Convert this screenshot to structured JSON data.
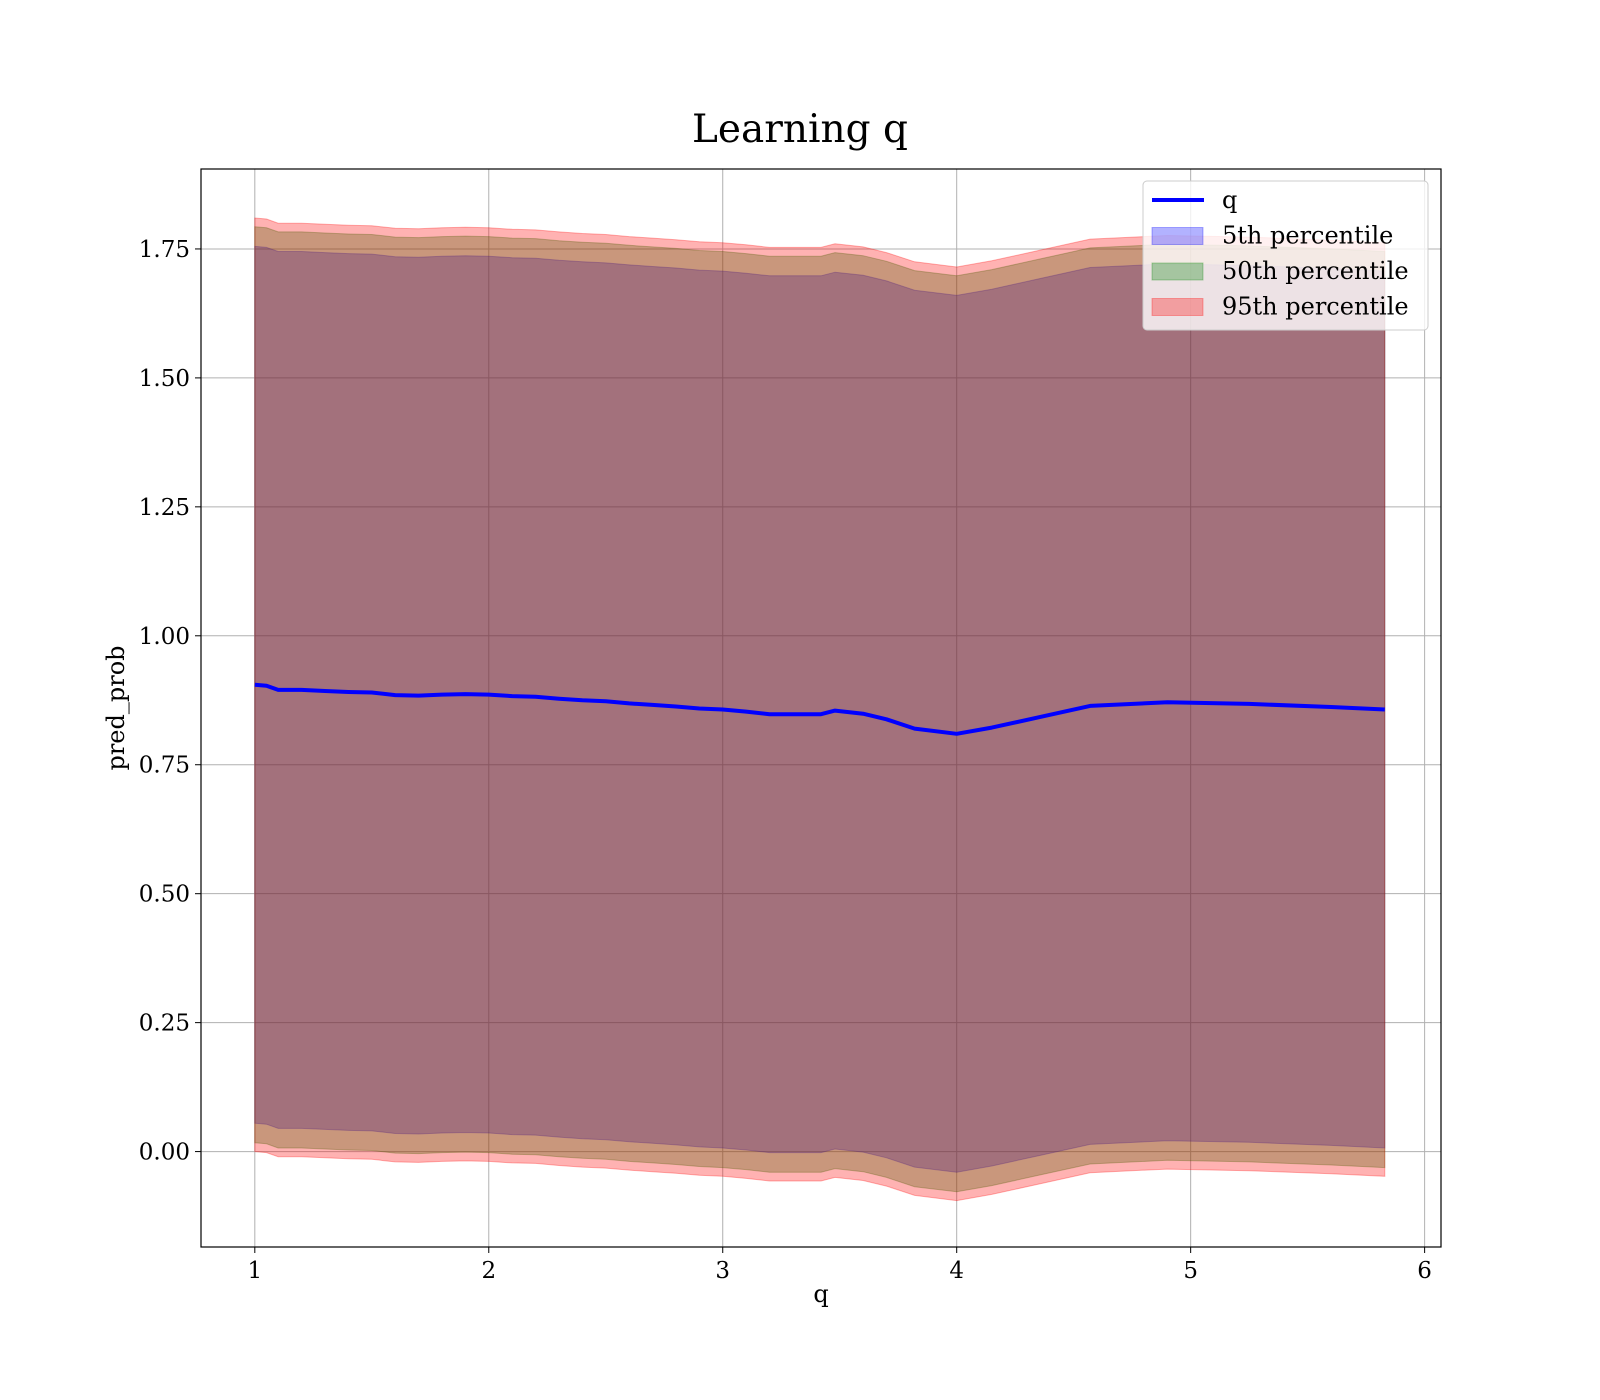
{
  "chart_data": {
    "type": "area",
    "title": "Learning q",
    "xlabel": "q",
    "ylabel": "pred_prob",
    "xlim": [
      0.77,
      6.07
    ],
    "ylim": [
      -0.185,
      1.905
    ],
    "x_ticks": [
      1,
      2,
      3,
      4,
      5,
      6
    ],
    "y_ticks": [
      0.0,
      0.25,
      0.5,
      0.75,
      1.0,
      1.25,
      1.5,
      1.75
    ],
    "y_tick_labels": [
      "0.00",
      "0.25",
      "0.50",
      "0.75",
      "1.00",
      "1.25",
      "1.50",
      "1.75"
    ],
    "grid": true,
    "legend_position": "top-right",
    "x": [
      1.0,
      1.05,
      1.1,
      1.2,
      1.3,
      1.4,
      1.5,
      1.6,
      1.7,
      1.8,
      1.9,
      2.0,
      2.1,
      2.2,
      2.3,
      2.4,
      2.5,
      2.6,
      2.7,
      2.8,
      2.9,
      3.0,
      3.1,
      3.2,
      3.3,
      3.42,
      3.48,
      3.6,
      3.7,
      3.82,
      4.0,
      4.15,
      4.35,
      4.57,
      4.9,
      5.25,
      5.6,
      5.83
    ],
    "series": [
      {
        "name": "q",
        "kind": "line",
        "color": "#0000ff",
        "values": [
          0.905,
          0.903,
          0.895,
          0.895,
          0.893,
          0.891,
          0.89,
          0.885,
          0.884,
          0.886,
          0.887,
          0.886,
          0.883,
          0.882,
          0.878,
          0.875,
          0.873,
          0.869,
          0.866,
          0.863,
          0.859,
          0.857,
          0.853,
          0.848,
          0.848,
          0.848,
          0.855,
          0.849,
          0.838,
          0.82,
          0.81,
          0.822,
          0.842,
          0.864,
          0.871,
          0.868,
          0.862,
          0.857
        ]
      },
      {
        "name": "5th percentile",
        "kind": "band",
        "color": "#0000ff",
        "lower": [
          0.055,
          0.053,
          0.045,
          0.045,
          0.043,
          0.041,
          0.04,
          0.035,
          0.034,
          0.036,
          0.037,
          0.036,
          0.033,
          0.032,
          0.028,
          0.025,
          0.023,
          0.019,
          0.016,
          0.013,
          0.009,
          0.007,
          0.003,
          -0.002,
          -0.002,
          -0.002,
          0.005,
          -0.001,
          -0.012,
          -0.03,
          -0.04,
          -0.028,
          -0.008,
          0.014,
          0.021,
          0.018,
          0.012,
          0.007
        ],
        "upper": [
          1.755,
          1.753,
          1.745,
          1.745,
          1.743,
          1.741,
          1.74,
          1.735,
          1.734,
          1.736,
          1.737,
          1.736,
          1.733,
          1.732,
          1.728,
          1.725,
          1.723,
          1.719,
          1.716,
          1.713,
          1.709,
          1.707,
          1.703,
          1.698,
          1.698,
          1.698,
          1.705,
          1.699,
          1.688,
          1.67,
          1.66,
          1.672,
          1.692,
          1.714,
          1.721,
          1.718,
          1.712,
          1.707
        ]
      },
      {
        "name": "50th percentile",
        "kind": "band",
        "color": "#008000",
        "lower": [
          0.017,
          0.015,
          0.007,
          0.007,
          0.005,
          0.003,
          0.002,
          -0.003,
          -0.004,
          -0.002,
          -0.001,
          -0.002,
          -0.005,
          -0.006,
          -0.01,
          -0.013,
          -0.015,
          -0.019,
          -0.022,
          -0.025,
          -0.029,
          -0.031,
          -0.035,
          -0.04,
          -0.04,
          -0.04,
          -0.033,
          -0.039,
          -0.05,
          -0.068,
          -0.078,
          -0.066,
          -0.046,
          -0.024,
          -0.017,
          -0.02,
          -0.026,
          -0.031
        ],
        "upper": [
          1.793,
          1.791,
          1.783,
          1.783,
          1.781,
          1.779,
          1.778,
          1.773,
          1.772,
          1.774,
          1.775,
          1.774,
          1.771,
          1.77,
          1.766,
          1.763,
          1.761,
          1.757,
          1.754,
          1.751,
          1.747,
          1.745,
          1.741,
          1.736,
          1.736,
          1.736,
          1.743,
          1.737,
          1.726,
          1.708,
          1.698,
          1.71,
          1.73,
          1.752,
          1.759,
          1.756,
          1.75,
          1.745
        ]
      },
      {
        "name": "95th percentile",
        "kind": "band",
        "color": "#ff0000",
        "lower": [
          0.0,
          -0.002,
          -0.01,
          -0.01,
          -0.012,
          -0.014,
          -0.015,
          -0.02,
          -0.021,
          -0.019,
          -0.018,
          -0.019,
          -0.022,
          -0.023,
          -0.027,
          -0.03,
          -0.032,
          -0.036,
          -0.039,
          -0.042,
          -0.046,
          -0.048,
          -0.052,
          -0.057,
          -0.057,
          -0.057,
          -0.05,
          -0.056,
          -0.067,
          -0.085,
          -0.095,
          -0.083,
          -0.063,
          -0.041,
          -0.034,
          -0.037,
          -0.043,
          -0.048
        ],
        "upper": [
          1.81,
          1.808,
          1.8,
          1.8,
          1.798,
          1.796,
          1.795,
          1.79,
          1.789,
          1.791,
          1.792,
          1.791,
          1.788,
          1.787,
          1.783,
          1.78,
          1.778,
          1.774,
          1.771,
          1.768,
          1.764,
          1.762,
          1.758,
          1.753,
          1.753,
          1.753,
          1.76,
          1.754,
          1.743,
          1.725,
          1.715,
          1.727,
          1.747,
          1.769,
          1.776,
          1.773,
          1.767,
          1.762
        ]
      }
    ]
  }
}
